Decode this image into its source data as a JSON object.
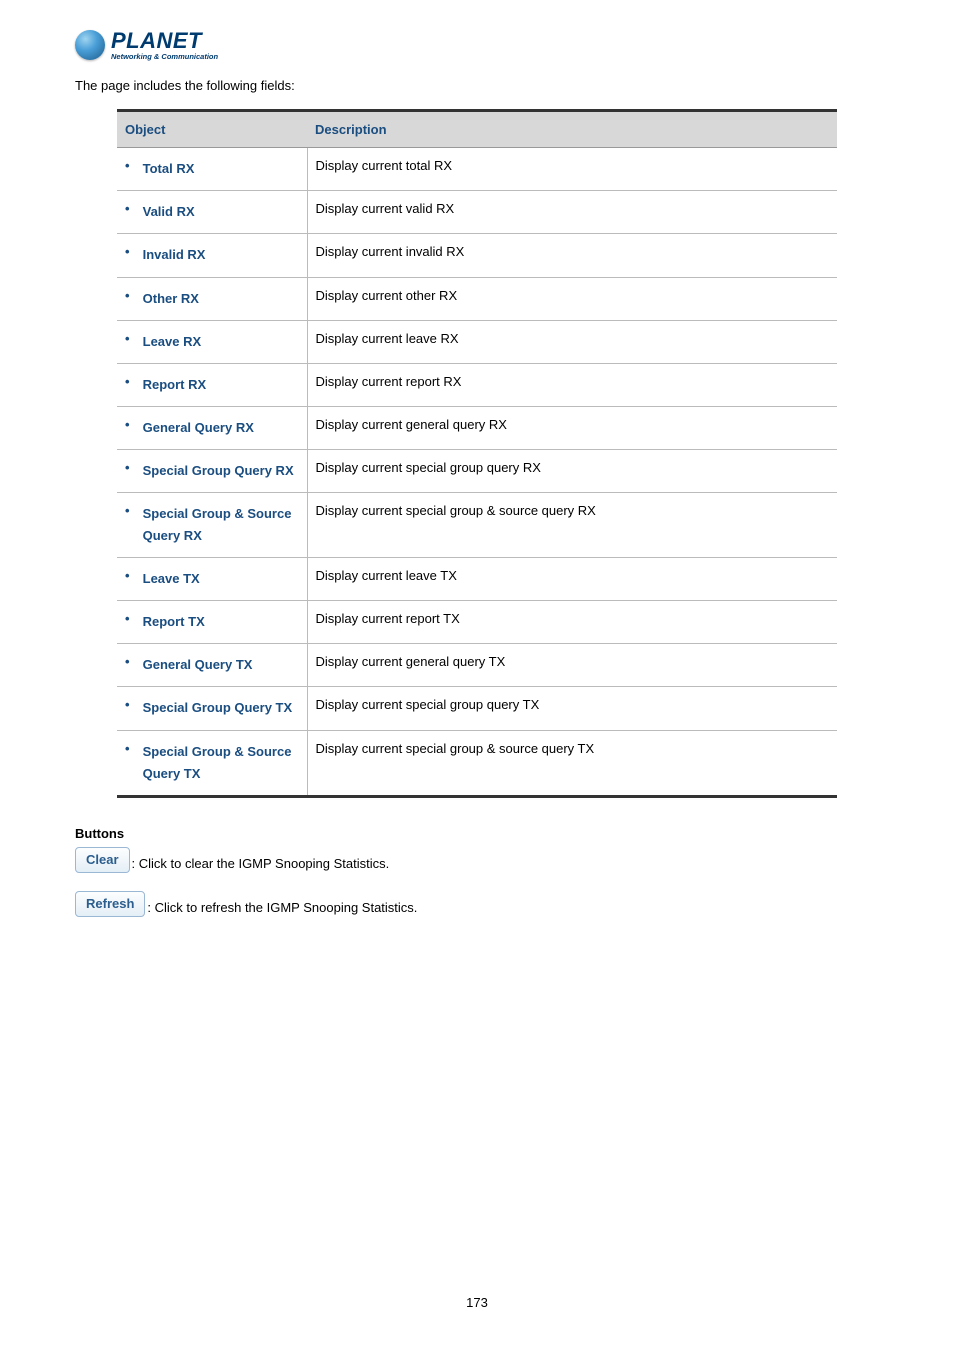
{
  "logo": {
    "brand": "PLANET",
    "tagline": "Networking & Communication"
  },
  "intro_text": "The page includes the following fields:",
  "table": {
    "header_object": "Object",
    "header_description": "Description",
    "rows": [
      {
        "object": "Total RX",
        "description": "Display current total RX"
      },
      {
        "object": "Valid RX",
        "description": "Display current valid RX"
      },
      {
        "object": "Invalid RX",
        "description": "Display current invalid RX"
      },
      {
        "object": "Other RX",
        "description": "Display current other RX"
      },
      {
        "object": "Leave RX",
        "description": "Display current leave RX"
      },
      {
        "object": "Report RX",
        "description": "Display current report RX"
      },
      {
        "object": "General Query RX",
        "description": "Display current general query RX"
      },
      {
        "object": "Special Group Query RX",
        "description": "Display current special group query RX"
      },
      {
        "object": "Special Group & Source Query RX",
        "description": "Display current special group & source query RX"
      },
      {
        "object": "Leave TX",
        "description": "Display current leave TX"
      },
      {
        "object": "Report TX",
        "description": "Display current report TX"
      },
      {
        "object": "General Query TX",
        "description": "Display current general query TX"
      },
      {
        "object": "Special Group Query TX",
        "description": "Display current special group query TX"
      },
      {
        "object": "Special Group & Source Query TX",
        "description": "Display current special group & source query TX"
      }
    ]
  },
  "buttons_section": {
    "heading": "Buttons",
    "clear": {
      "label": "Clear",
      "caption": ": Click to clear the IGMP Snooping Statistics."
    },
    "refresh": {
      "label": "Refresh",
      "caption": ": Click to refresh the IGMP Snooping Statistics."
    }
  },
  "page_number": "173",
  "colors": {
    "header_bg": "#d8d8d8",
    "object_text": "#1a4d80",
    "border_dark": "#333333",
    "border_light": "#bbbbbb",
    "btn_text": "#2b5e8e",
    "btn_border": "#9ab8d4"
  }
}
